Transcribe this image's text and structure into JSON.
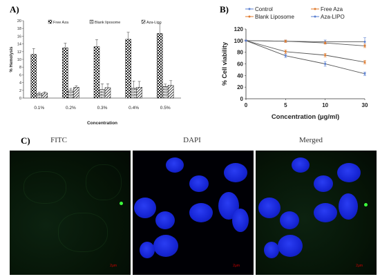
{
  "panels": {
    "a_label": "A)",
    "b_label": "B)",
    "c_label": "C)"
  },
  "chart_data": [
    {
      "type": "bar",
      "categories": [
        "0.1%",
        "0.2%",
        "0.3%",
        "0.4%",
        "0.5%"
      ],
      "series": [
        {
          "name": "Free Aza",
          "values": [
            11.3,
            13.0,
            13.3,
            15.2,
            16.7
          ],
          "errors": [
            1.5,
            1.2,
            1.8,
            1.8,
            2.5
          ]
        },
        {
          "name": "Blank liposome",
          "values": [
            1.2,
            2.0,
            2.2,
            2.6,
            3.0
          ],
          "errors": [
            0.3,
            0.5,
            1.5,
            1.8,
            0.6
          ]
        },
        {
          "name": "Aza-Lipo",
          "values": [
            1.3,
            2.8,
            2.7,
            2.8,
            3.3
          ],
          "errors": [
            0.3,
            0.4,
            1.0,
            1.5,
            1.2
          ]
        }
      ],
      "xlabel": "Concentration",
      "ylabel": "% Hemolysis",
      "ylim": [
        0,
        20
      ],
      "yticks": [
        0,
        2,
        4,
        6,
        8,
        10,
        12,
        14,
        16,
        18,
        20
      ],
      "legend": "top",
      "grid": false
    },
    {
      "type": "line",
      "x": [
        0,
        5,
        10,
        30
      ],
      "xticks": [
        "0",
        "5",
        "10",
        "30"
      ],
      "series": [
        {
          "name": "Control",
          "values": [
            100,
            99,
            98,
            98
          ],
          "errors": [
            1,
            2,
            3,
            7
          ],
          "color": "#5a7fd0"
        },
        {
          "name": "Free Aza",
          "values": [
            100,
            81,
            75,
            63
          ],
          "errors": [
            1,
            3,
            3,
            3
          ],
          "color": "#e07a2c"
        },
        {
          "name": "Blank Liposome",
          "values": [
            100,
            99,
            96,
            91
          ],
          "errors": [
            1,
            2,
            2,
            3
          ],
          "color": "#e07a2c"
        },
        {
          "name": "Aza-LIPO",
          "values": [
            100,
            74,
            60,
            43
          ],
          "errors": [
            1,
            3,
            4,
            3
          ],
          "color": "#5a7fd0"
        }
      ],
      "xlabel": "Concentration (µg/ml)",
      "ylabel": "% Cell viability",
      "ylim": [
        0,
        120
      ],
      "yticks": [
        0,
        20,
        40,
        60,
        80,
        100,
        120
      ],
      "legend": "top",
      "grid": false
    }
  ],
  "micrographs": {
    "titles": [
      "FITC",
      "DAPI",
      "Merged"
    ],
    "scale_label": "2μm"
  }
}
